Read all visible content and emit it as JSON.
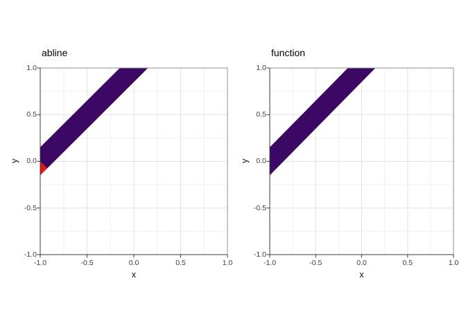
{
  "colors": {
    "band_purple": "#3b0964",
    "band_red": "#dc1c10",
    "grid_major": "#e2e2e2",
    "grid_minor": "#f0f0f0",
    "panel_border": "#8f8f8f",
    "axis_line": "#3a3a3a",
    "tick_label": "#3d3d3d",
    "title_text": "#000000"
  },
  "plots": [
    {
      "title": "abline",
      "xlabel": "x",
      "ylabel": "y",
      "xtick_labels": [
        "-1.0",
        "-0.5",
        "0.0",
        "0.5",
        "1.0"
      ],
      "ytick_labels": [
        "1.0",
        "0.5",
        "0.0",
        "-0.5",
        "-1.0"
      ]
    },
    {
      "title": "function",
      "xlabel": "x",
      "ylabel": "y",
      "xtick_labels": [
        "-1.0",
        "-0.5",
        "0.0",
        "0.5",
        "1.0"
      ],
      "ytick_labels": [
        "1.0",
        "0.5",
        "0.0",
        "-0.5",
        "-1.0"
      ]
    }
  ],
  "chart_data": [
    {
      "type": "area",
      "title": "abline",
      "xlabel": "x",
      "ylabel": "y",
      "xlim": [
        -1,
        1
      ],
      "ylim": [
        -1,
        1
      ],
      "xticks": [
        -1.0,
        -0.5,
        0.0,
        0.5,
        1.0
      ],
      "yticks": [
        -1.0,
        -0.5,
        0.0,
        0.5,
        1.0
      ],
      "grid": "major 0.5 + minor 0.25, light gray, white panel",
      "legend": "none",
      "band_center": "y = x + 1",
      "band_half_width_y": 0.15,
      "series": [
        {
          "name": "function-band-red-underlay",
          "color": "#dc1c10",
          "polygon": [
            [
              -1,
              0.15
            ],
            [
              -0.15,
              1
            ],
            [
              0.15,
              1
            ],
            [
              -1,
              -0.15
            ]
          ]
        },
        {
          "name": "abline-band-purple",
          "color": "#3b0964",
          "polygon": [
            [
              -1,
              0.15
            ],
            [
              -0.15,
              1
            ],
            [
              0.15,
              1
            ],
            [
              -0.925,
              -0.075
            ],
            [
              -1,
              0
            ]
          ]
        }
      ],
      "annotation": "red triangle visible at lower-left between (-1,0), (-0.925,-0.075), (-1,-0.15) where the purple abline butt-cap cuts the band"
    },
    {
      "type": "area",
      "title": "function",
      "xlabel": "x",
      "ylabel": "y",
      "xlim": [
        -1,
        1
      ],
      "ylim": [
        -1,
        1
      ],
      "xticks": [
        -1.0,
        -0.5,
        0.0,
        0.5,
        1.0
      ],
      "yticks": [
        -1.0,
        -0.5,
        0.0,
        0.5,
        1.0
      ],
      "grid": "major 0.5 + minor 0.25, light gray, white panel",
      "legend": "none",
      "band_center": "y = x + 1",
      "band_half_width_y": 0.15,
      "series": [
        {
          "name": "function-band-purple",
          "color": "#3b0964",
          "polygon": [
            [
              -1,
              0.15
            ],
            [
              -0.15,
              1
            ],
            [
              0.15,
              1
            ],
            [
              -1,
              -0.15
            ]
          ]
        }
      ]
    }
  ]
}
